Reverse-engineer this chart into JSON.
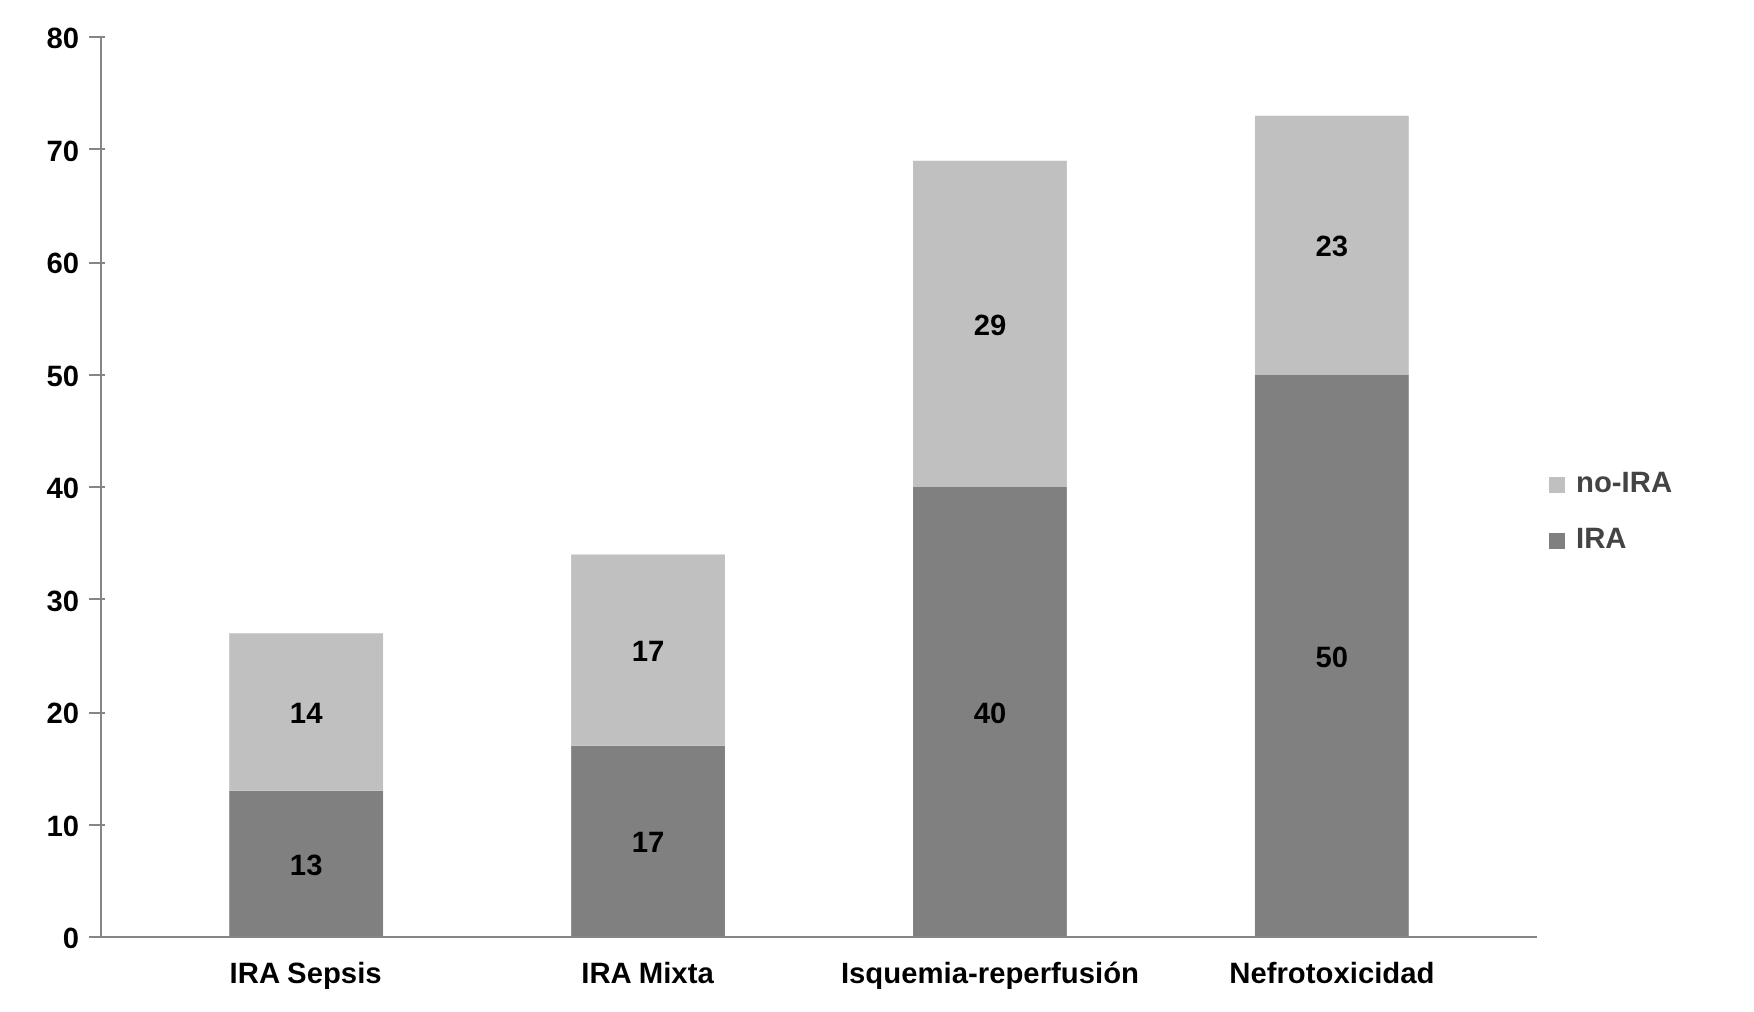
{
  "chart_data": {
    "type": "bar",
    "stacked": true,
    "categories": [
      "IRA Sepsis",
      "IRA Mixta",
      "Isquemia-reperfusión",
      "Nefrotoxicidad"
    ],
    "series": [
      {
        "name": "IRA",
        "color": "#808080",
        "values": [
          13,
          17,
          40,
          50
        ]
      },
      {
        "name": "no-IRA",
        "color": "#c0c0c0",
        "values": [
          14,
          17,
          29,
          23
        ]
      }
    ],
    "ylim": [
      0,
      80
    ],
    "yticks": [
      0,
      10,
      20,
      30,
      40,
      50,
      60,
      70,
      80
    ],
    "data_labels": true,
    "grid": false,
    "legend": "right"
  }
}
